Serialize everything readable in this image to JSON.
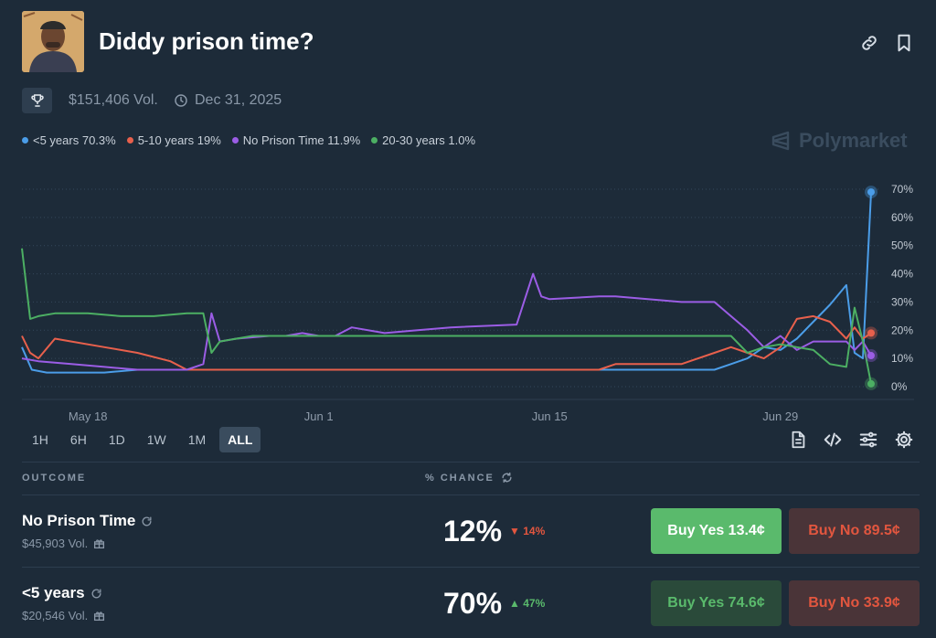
{
  "header": {
    "title": "Diddy prison time?",
    "volume": "$151,406 Vol.",
    "end_date": "Dec 31, 2025",
    "brand": "Polymarket"
  },
  "legend": [
    {
      "label": "<5 years 70.3%",
      "color": "#4b9de8"
    },
    {
      "label": "5-10 years 19%",
      "color": "#e8604c"
    },
    {
      "label": "No Prison Time 11.9%",
      "color": "#9b5de5"
    },
    {
      "label": "20-30 years 1.0%",
      "color": "#4caf63"
    }
  ],
  "time_ranges": [
    "1H",
    "6H",
    "1D",
    "1W",
    "1M",
    "ALL"
  ],
  "active_range": "ALL",
  "table": {
    "col_outcome": "OUTCOME",
    "col_chance": "% CHANCE",
    "rows": [
      {
        "name": "No Prison Time",
        "volume": "$45,903 Vol.",
        "chance": "12%",
        "change": "14%",
        "direction": "down",
        "buy_yes": "Buy Yes 13.4¢",
        "buy_no": "Buy No 89.5¢"
      },
      {
        "name": "<5 years",
        "volume": "$20,546 Vol.",
        "chance": "70%",
        "change": "47%",
        "direction": "up",
        "buy_yes": "Buy Yes 74.6¢",
        "buy_no": "Buy No 33.9¢"
      }
    ]
  },
  "chart_data": {
    "type": "line",
    "x_ticks": [
      "May 18",
      "Jun 1",
      "Jun 15",
      "Jun 29"
    ],
    "y_ticks": [
      "70%",
      "60%",
      "50%",
      "40%",
      "30%",
      "20%",
      "10%",
      "0%"
    ],
    "ylim": [
      0,
      70
    ],
    "x_domain_days": [
      0,
      52
    ],
    "x_tick_days": [
      4,
      18,
      32,
      46
    ],
    "series": [
      {
        "name": "<5 years",
        "color": "#4b9de8",
        "x": [
          0,
          0.6,
          1.5,
          3,
          5,
          7,
          9,
          10,
          11,
          13,
          16,
          20,
          25,
          30,
          35,
          38,
          40,
          42,
          43,
          44,
          45,
          46,
          47,
          48,
          49,
          50,
          50.5,
          51,
          51.5
        ],
        "y": [
          14,
          6,
          5,
          5,
          5,
          6,
          6,
          6,
          6,
          6,
          6,
          6,
          6,
          6,
          6,
          6,
          6,
          6,
          8,
          10,
          14,
          13,
          17,
          23,
          29,
          36,
          12,
          10,
          69
        ]
      },
      {
        "name": "5-10 years",
        "color": "#e8604c",
        "x": [
          0,
          0.5,
          1,
          2,
          3,
          5,
          7,
          9,
          10,
          12,
          15,
          20,
          25,
          30,
          35,
          36,
          38,
          40,
          42,
          43,
          44,
          45,
          46,
          47,
          48,
          49,
          50,
          50.5,
          51,
          51.5
        ],
        "y": [
          18,
          12,
          10,
          17,
          16,
          14,
          12,
          9,
          6,
          6,
          6,
          6,
          6,
          6,
          6,
          8,
          8,
          8,
          12,
          14,
          12,
          10,
          14,
          24,
          25,
          23,
          17,
          21,
          17,
          19
        ]
      },
      {
        "name": "No Prison Time",
        "color": "#9b5de5",
        "x": [
          0,
          1,
          3,
          5,
          7,
          9,
          10,
          11,
          11.5,
          12,
          13,
          15,
          16,
          17,
          18,
          19,
          20,
          22,
          24,
          26,
          30,
          31,
          31.5,
          32,
          35,
          36,
          40,
          42,
          43,
          44,
          45,
          46,
          47,
          48,
          49,
          50,
          50.5,
          51,
          51.5
        ],
        "y": [
          10,
          9,
          8,
          7,
          6,
          6,
          6,
          8,
          26,
          16,
          17,
          18,
          18,
          19,
          18,
          18,
          21,
          19,
          20,
          21,
          22,
          40,
          32,
          31,
          32,
          32,
          30,
          30,
          25,
          20,
          14,
          18,
          13,
          16,
          16,
          16,
          13,
          16,
          11
        ]
      },
      {
        "name": "20-30 years",
        "color": "#4caf63",
        "x": [
          0,
          0.5,
          1,
          2,
          4,
          6,
          8,
          10,
          11,
          11.5,
          12,
          14,
          20,
          30,
          40,
          43,
          44,
          45,
          46,
          47,
          48,
          49,
          50,
          50.5,
          51,
          51.5
        ],
        "y": [
          49,
          24,
          25,
          26,
          26,
          25,
          25,
          26,
          26,
          12,
          16,
          18,
          18,
          18,
          18,
          18,
          12,
          14,
          15,
          14,
          13,
          8,
          7,
          28,
          16,
          1
        ]
      }
    ]
  }
}
